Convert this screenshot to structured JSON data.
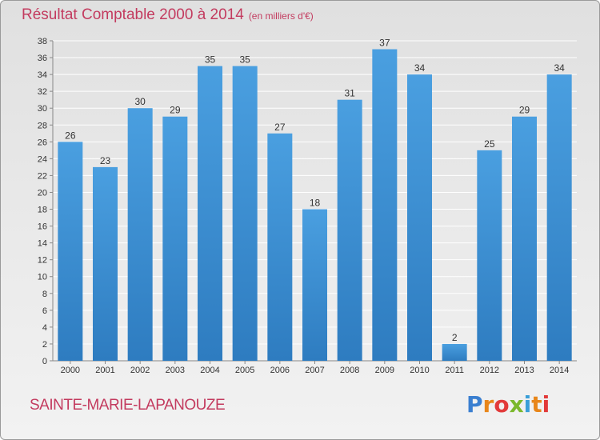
{
  "title": "Résultat Comptable 2000 à 2014",
  "unit": "(en milliers d'€)",
  "place": "SAINTE-MARIE-LAPANOUZE",
  "logo": [
    "P",
    "r",
    "o",
    "x",
    "i",
    "t",
    "i"
  ],
  "colors": {
    "bar": "#4a9fe0",
    "bar_dark": "#2e7cc0",
    "title": "#c33b5f"
  },
  "chart_data": {
    "type": "bar",
    "title": "Résultat Comptable 2000 à 2014",
    "ylabel": "en milliers d'€",
    "categories": [
      "2000",
      "2001",
      "2002",
      "2003",
      "2004",
      "2005",
      "2006",
      "2007",
      "2008",
      "2009",
      "2010",
      "2011",
      "2012",
      "2013",
      "2014"
    ],
    "values": [
      26,
      23,
      30,
      29,
      35,
      35,
      27,
      18,
      31,
      37,
      34,
      2,
      25,
      29,
      34
    ],
    "ylim": [
      0,
      38
    ],
    "yticks": [
      0,
      2,
      4,
      6,
      8,
      10,
      12,
      14,
      16,
      18,
      20,
      22,
      24,
      26,
      28,
      30,
      32,
      34,
      36,
      38
    ],
    "grid": true
  }
}
